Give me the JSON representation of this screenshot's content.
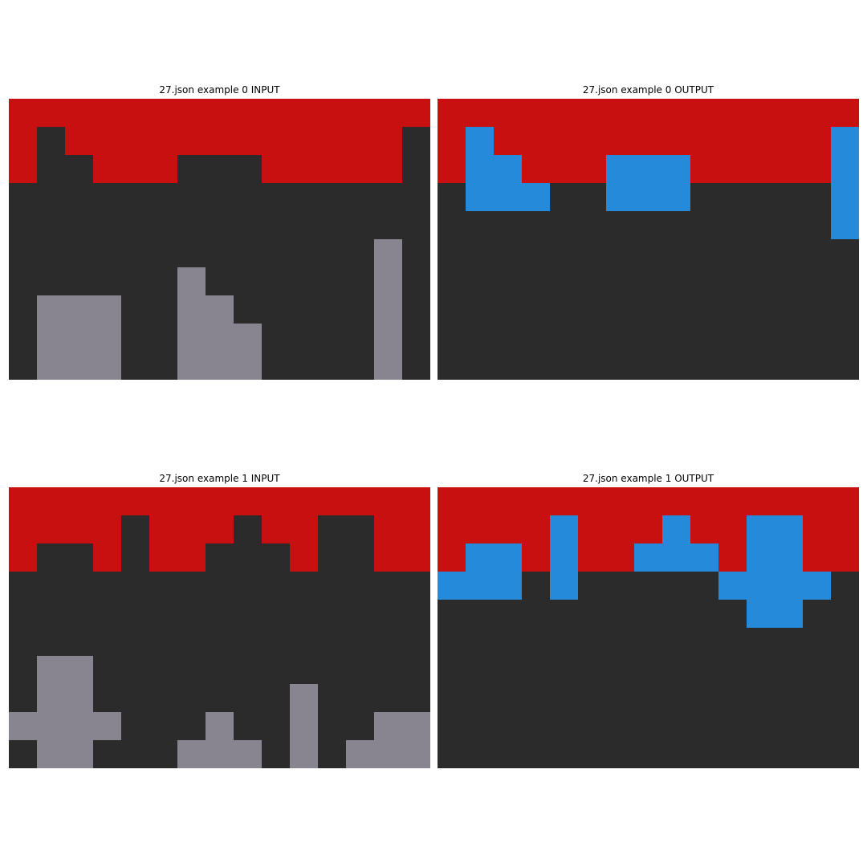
{
  "palette": {
    "0": "#2b2b2b",
    "2": "#c81010",
    "5": "#888590",
    "1": "#248ad9"
  },
  "panels": [
    {
      "title": "27.json example 0 INPUT",
      "grid": [
        [
          2,
          2,
          2,
          2,
          2,
          2,
          2,
          2,
          2,
          2,
          2,
          2,
          2,
          2,
          2
        ],
        [
          2,
          0,
          2,
          2,
          2,
          2,
          2,
          2,
          2,
          2,
          2,
          2,
          2,
          2,
          0
        ],
        [
          2,
          0,
          0,
          2,
          2,
          2,
          0,
          0,
          0,
          2,
          2,
          2,
          2,
          2,
          0
        ],
        [
          0,
          0,
          0,
          0,
          0,
          0,
          0,
          0,
          0,
          0,
          0,
          0,
          0,
          0,
          0
        ],
        [
          0,
          0,
          0,
          0,
          0,
          0,
          0,
          0,
          0,
          0,
          0,
          0,
          0,
          0,
          0
        ],
        [
          0,
          0,
          0,
          0,
          0,
          0,
          0,
          0,
          0,
          0,
          0,
          0,
          0,
          5,
          0
        ],
        [
          0,
          0,
          0,
          0,
          0,
          0,
          5,
          0,
          0,
          0,
          0,
          0,
          0,
          5,
          0
        ],
        [
          0,
          5,
          5,
          5,
          0,
          0,
          5,
          5,
          0,
          0,
          0,
          0,
          0,
          5,
          0
        ],
        [
          0,
          5,
          5,
          5,
          0,
          0,
          5,
          5,
          5,
          0,
          0,
          0,
          0,
          5,
          0
        ],
        [
          0,
          5,
          5,
          5,
          0,
          0,
          5,
          5,
          5,
          0,
          0,
          0,
          0,
          5,
          0
        ]
      ]
    },
    {
      "title": "27.json example 0 OUTPUT",
      "grid": [
        [
          2,
          2,
          2,
          2,
          2,
          2,
          2,
          2,
          2,
          2,
          2,
          2,
          2,
          2,
          2
        ],
        [
          2,
          1,
          2,
          2,
          2,
          2,
          2,
          2,
          2,
          2,
          2,
          2,
          2,
          2,
          1
        ],
        [
          2,
          1,
          1,
          2,
          2,
          2,
          1,
          1,
          1,
          2,
          2,
          2,
          2,
          2,
          1
        ],
        [
          0,
          1,
          1,
          1,
          0,
          0,
          1,
          1,
          1,
          0,
          0,
          0,
          0,
          0,
          1
        ],
        [
          0,
          0,
          0,
          0,
          0,
          0,
          0,
          0,
          0,
          0,
          0,
          0,
          0,
          0,
          1
        ],
        [
          0,
          0,
          0,
          0,
          0,
          0,
          0,
          0,
          0,
          0,
          0,
          0,
          0,
          0,
          0
        ],
        [
          0,
          0,
          0,
          0,
          0,
          0,
          0,
          0,
          0,
          0,
          0,
          0,
          0,
          0,
          0
        ],
        [
          0,
          0,
          0,
          0,
          0,
          0,
          0,
          0,
          0,
          0,
          0,
          0,
          0,
          0,
          0
        ],
        [
          0,
          0,
          0,
          0,
          0,
          0,
          0,
          0,
          0,
          0,
          0,
          0,
          0,
          0,
          0
        ],
        [
          0,
          0,
          0,
          0,
          0,
          0,
          0,
          0,
          0,
          0,
          0,
          0,
          0,
          0,
          0
        ]
      ]
    },
    {
      "title": "27.json example 1 INPUT",
      "grid": [
        [
          2,
          2,
          2,
          2,
          2,
          2,
          2,
          2,
          2,
          2,
          2,
          2,
          2,
          2,
          2
        ],
        [
          2,
          2,
          2,
          2,
          0,
          2,
          2,
          2,
          0,
          2,
          2,
          0,
          0,
          2,
          2
        ],
        [
          2,
          0,
          0,
          2,
          0,
          2,
          2,
          0,
          0,
          0,
          2,
          0,
          0,
          2,
          2
        ],
        [
          0,
          0,
          0,
          0,
          0,
          0,
          0,
          0,
          0,
          0,
          0,
          0,
          0,
          0,
          0
        ],
        [
          0,
          0,
          0,
          0,
          0,
          0,
          0,
          0,
          0,
          0,
          0,
          0,
          0,
          0,
          0
        ],
        [
          0,
          0,
          0,
          0,
          0,
          0,
          0,
          0,
          0,
          0,
          0,
          0,
          0,
          0,
          0
        ],
        [
          0,
          5,
          5,
          0,
          0,
          0,
          0,
          0,
          0,
          0,
          0,
          0,
          0,
          0,
          0
        ],
        [
          0,
          5,
          5,
          0,
          0,
          0,
          0,
          0,
          0,
          0,
          5,
          0,
          0,
          0,
          0
        ],
        [
          5,
          5,
          5,
          5,
          0,
          0,
          0,
          5,
          0,
          0,
          5,
          0,
          0,
          5,
          5
        ],
        [
          0,
          5,
          5,
          0,
          0,
          0,
          5,
          5,
          5,
          0,
          5,
          0,
          5,
          5,
          5
        ]
      ]
    },
    {
      "title": "27.json example 1 OUTPUT",
      "grid": [
        [
          2,
          2,
          2,
          2,
          2,
          2,
          2,
          2,
          2,
          2,
          2,
          2,
          2,
          2,
          2
        ],
        [
          2,
          2,
          2,
          2,
          1,
          2,
          2,
          2,
          1,
          2,
          2,
          1,
          1,
          2,
          2
        ],
        [
          2,
          1,
          1,
          2,
          1,
          2,
          2,
          1,
          1,
          1,
          2,
          1,
          1,
          2,
          2
        ],
        [
          1,
          1,
          1,
          0,
          1,
          0,
          0,
          0,
          0,
          0,
          1,
          1,
          1,
          1,
          0
        ],
        [
          0,
          0,
          0,
          0,
          0,
          0,
          0,
          0,
          0,
          0,
          0,
          1,
          1,
          0,
          0
        ],
        [
          0,
          0,
          0,
          0,
          0,
          0,
          0,
          0,
          0,
          0,
          0,
          0,
          0,
          0,
          0
        ],
        [
          0,
          0,
          0,
          0,
          0,
          0,
          0,
          0,
          0,
          0,
          0,
          0,
          0,
          0,
          0
        ],
        [
          0,
          0,
          0,
          0,
          0,
          0,
          0,
          0,
          0,
          0,
          0,
          0,
          0,
          0,
          0
        ],
        [
          0,
          0,
          0,
          0,
          0,
          0,
          0,
          0,
          0,
          0,
          0,
          0,
          0,
          0,
          0
        ],
        [
          0,
          0,
          0,
          0,
          0,
          0,
          0,
          0,
          0,
          0,
          0,
          0,
          0,
          0,
          0
        ]
      ]
    }
  ]
}
